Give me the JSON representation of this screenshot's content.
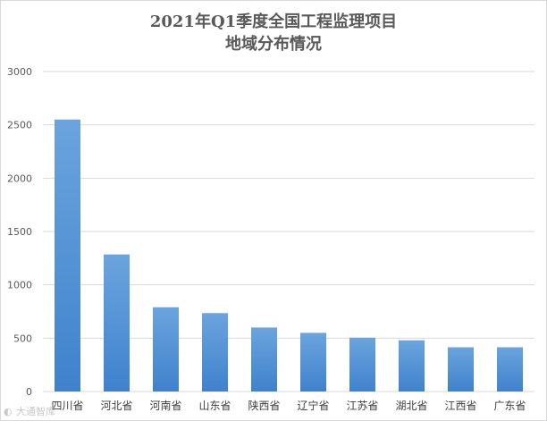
{
  "chart_data": {
    "type": "bar",
    "title_line1": "2021年Q1季度全国工程监理项目",
    "title_line2": "地域分布情况",
    "categories": [
      "四川省",
      "河北省",
      "河南省",
      "山东省",
      "陕西省",
      "辽宁省",
      "江苏省",
      "湖北省",
      "江西省",
      "广东省"
    ],
    "values": [
      2550,
      1285,
      790,
      735,
      600,
      550,
      505,
      480,
      415,
      415
    ],
    "ylim": [
      0,
      3000
    ],
    "yticks": [
      "0",
      "500",
      "1000",
      "1500",
      "2000",
      "2500",
      "3000"
    ],
    "grid": true,
    "legend": "none",
    "bar_color_top": "#6ba4de",
    "bar_color_bottom": "#3f82cc"
  },
  "watermark": {
    "text": "大通智库"
  }
}
